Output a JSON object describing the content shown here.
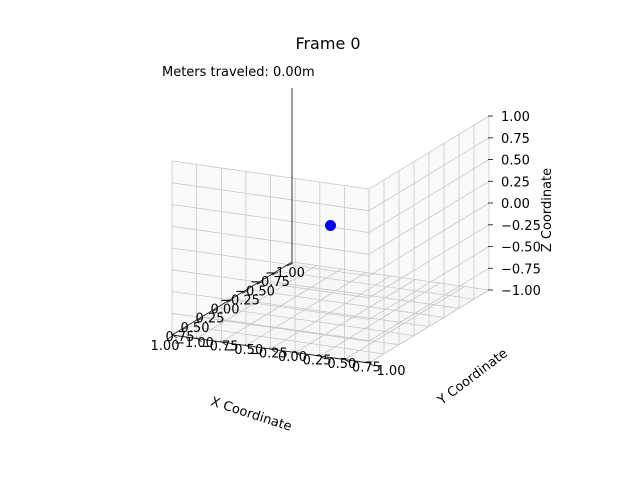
{
  "chart_data": {
    "type": "scatter",
    "projection": "3d",
    "title": "Frame 0",
    "annotation": "Meters traveled: 0.00m",
    "xlabel": "X Coordinate",
    "ylabel": "Y Coordinate",
    "zlabel": "Z Coordinate",
    "xlim": [
      -1.0,
      1.0
    ],
    "ylim": [
      -1.0,
      1.0
    ],
    "zlim": [
      -1.0,
      1.0
    ],
    "ticks": [
      -1.0,
      -0.75,
      -0.5,
      -0.25,
      0.0,
      0.25,
      0.5,
      0.75,
      1.0
    ],
    "tick_labels": [
      "−1.00",
      "−0.75",
      "−0.50",
      "−0.25",
      "0.00",
      "0.25",
      "0.50",
      "0.75",
      "1.00"
    ],
    "grid": true,
    "points": [
      {
        "x": 0.0,
        "y": 0.0,
        "z": 0.0,
        "color": "#0000ff"
      }
    ]
  }
}
